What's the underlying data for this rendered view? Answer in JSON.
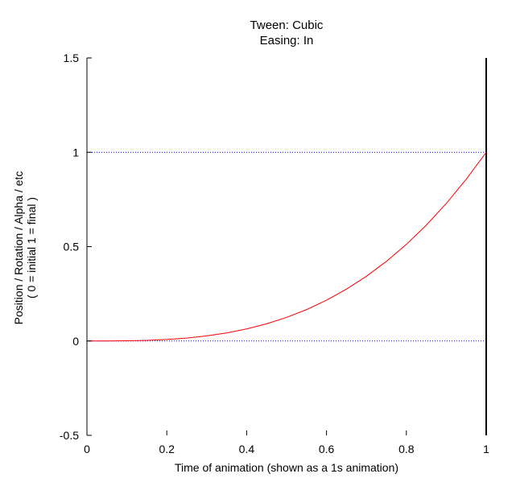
{
  "chart_data": {
    "type": "line",
    "title": [
      "Tween: Cubic",
      "Easing: In"
    ],
    "xlabel": "Time of animation (shown as a 1s animation)",
    "ylabel": [
      "Position / Rotation / Alpha / etc",
      "( 0 = initial   1 = final )"
    ],
    "xlim": [
      0,
      1
    ],
    "ylim": [
      -0.5,
      1.5
    ],
    "x_ticks": [
      "0",
      "0.2",
      "0.4",
      "0.6",
      "0.8",
      "1"
    ],
    "y_ticks": [
      "-0.5",
      "0",
      "0.5",
      "1",
      "1.5"
    ],
    "grid": false,
    "reference_lines": [
      0,
      1
    ],
    "series": [
      {
        "color": "#ff0000",
        "x": [
          0,
          0.05,
          0.1,
          0.15,
          0.2,
          0.25,
          0.3,
          0.35,
          0.4,
          0.45,
          0.5,
          0.55,
          0.6,
          0.65,
          0.7,
          0.75,
          0.8,
          0.85,
          0.9,
          0.95,
          1
        ],
        "y": [
          0,
          0.000125,
          0.001,
          0.003375,
          0.008,
          0.015625,
          0.027,
          0.042875,
          0.064,
          0.091125,
          0.125,
          0.166375,
          0.216,
          0.274625,
          0.343,
          0.421875,
          0.512,
          0.614125,
          0.729,
          0.857375,
          1
        ]
      }
    ],
    "colors": {
      "curve": "#ff0000",
      "reference": "#0000ff",
      "axis": "#000000"
    }
  }
}
